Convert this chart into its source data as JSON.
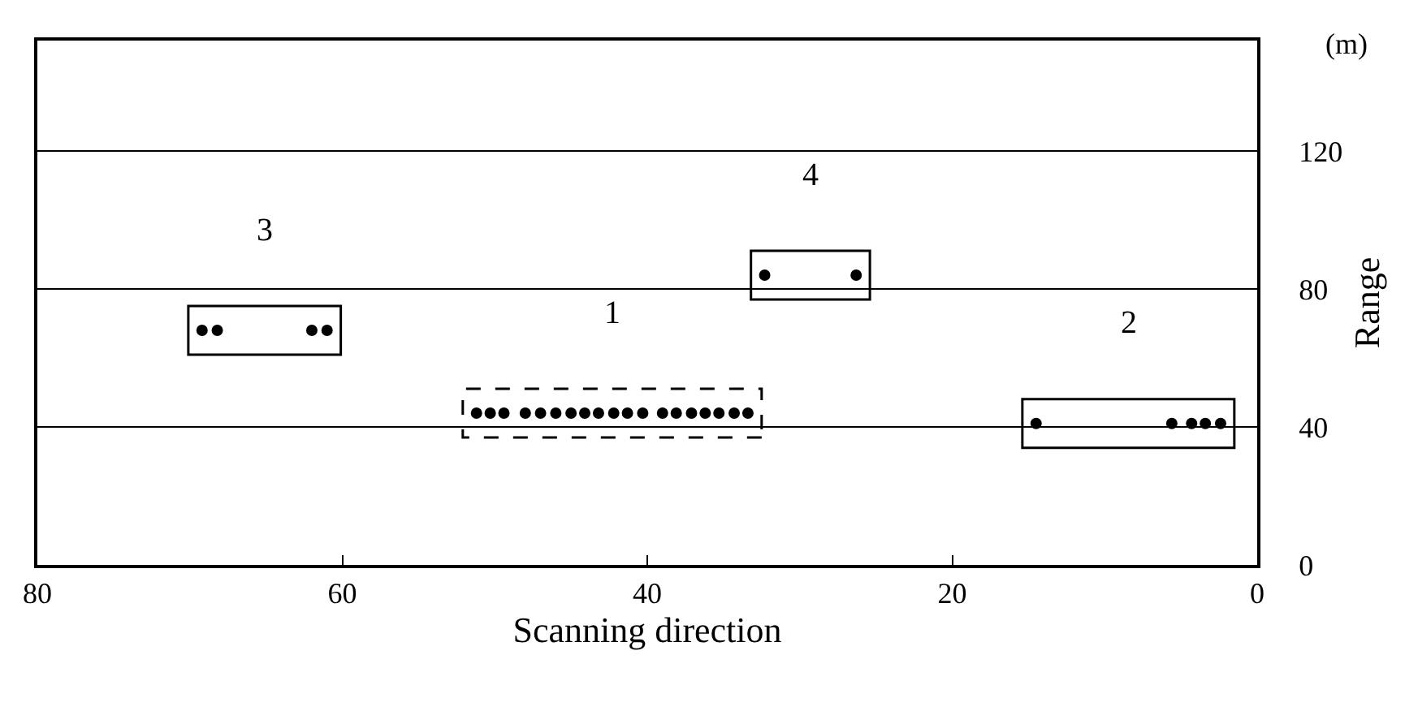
{
  "chart_data": {
    "type": "scatter",
    "xlabel": "Scanning direction",
    "ylabel": "Range",
    "xlim": [
      80,
      0
    ],
    "xticks": [
      80,
      60,
      40,
      20,
      0
    ],
    "ylim": [
      0,
      152
    ],
    "yticks": [
      0,
      40,
      80,
      120
    ],
    "grid": "y",
    "legend": false,
    "marker": "circle",
    "series": [
      {
        "name": "1",
        "color": "#000000",
        "line_style": "dashed",
        "x": [
          51.2,
          50.3,
          49.4,
          48.0,
          47.0,
          46.0,
          45.0,
          44.1,
          43.2,
          42.2,
          41.3,
          40.3,
          39.0,
          38.1,
          37.1,
          36.2,
          35.3,
          34.3,
          33.4
        ],
        "values": [
          44,
          44,
          44,
          44,
          44,
          44,
          44,
          44,
          44,
          44,
          44,
          44,
          44,
          44,
          44,
          44,
          44,
          44,
          44
        ]
      },
      {
        "name": "2",
        "color": "#000000",
        "line_style": "solid",
        "x": [
          14.5,
          5.6,
          4.3,
          3.4,
          2.4
        ],
        "values": [
          41,
          41,
          41,
          41,
          41
        ]
      },
      {
        "name": "3",
        "color": "#000000",
        "line_style": "solid",
        "x": [
          69.2,
          68.2,
          62.0,
          61.0
        ],
        "values": [
          68,
          68,
          68,
          68
        ]
      },
      {
        "name": "4",
        "color": "#000000",
        "line_style": "solid",
        "x": [
          32.3,
          26.3
        ],
        "values": [
          84,
          84
        ]
      }
    ],
    "annotations": [
      "(m)"
    ]
  }
}
